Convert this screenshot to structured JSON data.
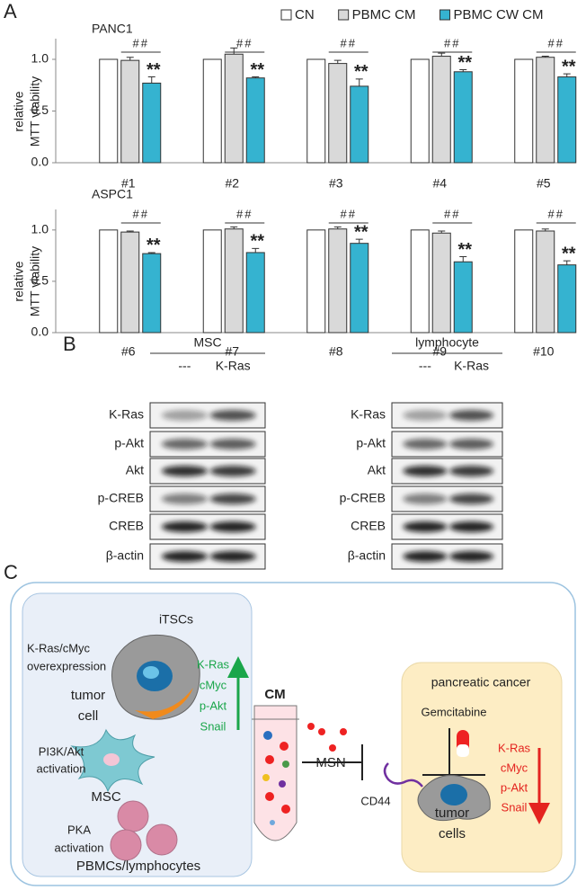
{
  "panel_labels": [
    "A",
    "B",
    "C"
  ],
  "chart_data": [
    {
      "type": "bar",
      "title": "PANC1",
      "legend": true,
      "categories": [
        "#1",
        "#2",
        "#3",
        "#4",
        "#5"
      ],
      "series": [
        {
          "name": "CN",
          "color": "#ffffff",
          "values": [
            1,
            1,
            1,
            1,
            1
          ]
        },
        {
          "name": "PBMC CM",
          "color": "#d9d9d9",
          "values": [
            0.99,
            1.05,
            0.96,
            1.03,
            1.02
          ],
          "errors": [
            0.03,
            0.06,
            0.03,
            0.03,
            0.01
          ]
        },
        {
          "name": "PBMC CW CM",
          "color": "#35b3d0",
          "values": [
            0.77,
            0.82,
            0.74,
            0.88,
            0.83
          ],
          "errors": [
            0.06,
            0.01,
            0.07,
            0.02,
            0.03
          ]
        }
      ],
      "ylabel": [
        "relative",
        "MTT viability"
      ],
      "ylim": [
        0,
        1.2
      ],
      "yticks": [
        {
          "value": 0,
          "label": "0.0"
        },
        {
          "value": 0.5,
          "label": "0.5"
        },
        {
          "value": 1,
          "label": "1.0"
        }
      ],
      "significance": {
        "vs_cm": "##",
        "vs_cn": "**"
      }
    },
    {
      "type": "bar",
      "title": "ASPC1",
      "legend": false,
      "categories": [
        "#6",
        "#7",
        "#8",
        "#9",
        "#10"
      ],
      "series": [
        {
          "color": "#ffffff",
          "values": [
            1,
            1,
            1,
            1,
            1
          ]
        },
        {
          "color": "#d9d9d9",
          "values": [
            0.98,
            1.01,
            1.01,
            0.97,
            0.99
          ],
          "errors": [
            0.01,
            0.02,
            0.02,
            0.02,
            0.02
          ]
        },
        {
          "color": "#35b3d0",
          "values": [
            0.77,
            0.78,
            0.87,
            0.69,
            0.66
          ],
          "errors": [
            0.01,
            0.04,
            0.04,
            0.05,
            0.04
          ]
        }
      ],
      "ylabel": [
        "relative",
        "MTT viability"
      ],
      "ylim": [
        0,
        1.2
      ],
      "yticks": [
        {
          "value": 0,
          "label": "0.0"
        },
        {
          "value": 0.5,
          "label": "0.5"
        },
        {
          "value": 1,
          "label": "1.0"
        }
      ],
      "significance": {
        "vs_cm": "##",
        "vs_cn": "**"
      }
    }
  ],
  "blots": [
    {
      "title": "MSC",
      "lanes": [
        "---",
        "K-Ras"
      ],
      "rows": [
        "K-Ras",
        "p-Akt",
        "Akt",
        "p-CREB",
        "CREB",
        "β-actin"
      ]
    },
    {
      "title": "lymphocyte",
      "lanes": [
        "---",
        "K-Ras"
      ],
      "rows": [
        "K-Ras",
        "p-Akt",
        "Akt",
        "p-CREB",
        "CREB",
        "β-actin"
      ]
    }
  ],
  "diagram": {
    "itscs_title": "iTSCs",
    "tumor_cell": {
      "condition": [
        "K-Ras/cMyc",
        "overexpression"
      ],
      "label": [
        "tumor",
        "cell"
      ]
    },
    "upregulated": [
      "K-Ras",
      "cMyc",
      "p-Akt",
      "Snail"
    ],
    "msc": {
      "condition": [
        "PI3K/Akt",
        "activation"
      ],
      "label": "MSC"
    },
    "pbmc": {
      "condition": [
        "PKA",
        "activation"
      ],
      "label": "PBMCs/lymphocytes"
    },
    "cm": "CM",
    "msn": "MSN",
    "cancer": {
      "title": "pancreatic cancer",
      "drug": "Gemcitabine",
      "receptor": "CD44",
      "label": [
        "tumor",
        "cells"
      ],
      "downregulated": [
        "K-Ras",
        "cMyc",
        "p-Akt",
        "Snail"
      ]
    }
  }
}
